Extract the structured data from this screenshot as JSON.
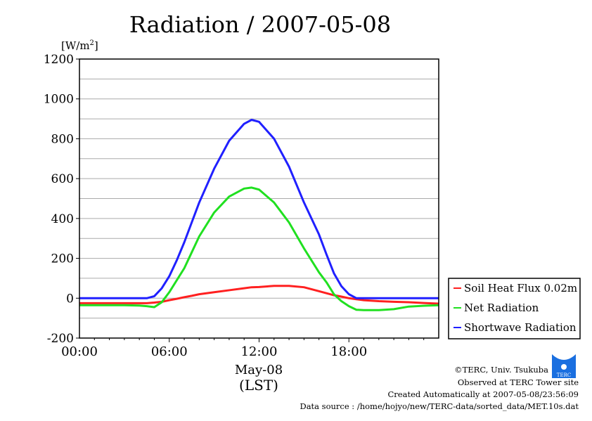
{
  "chart_data": {
    "type": "line",
    "title": "Radiation / 2007-05-08",
    "ylabel": "[W/m",
    "ylabel_sup": "2",
    "ylabel_end": "]",
    "xlabel_date": "May-08",
    "xlabel": "(LST)",
    "xlim": [
      0,
      24
    ],
    "ylim": [
      -200,
      1200
    ],
    "yticks": [
      -200,
      0,
      200,
      400,
      600,
      800,
      1000,
      1200
    ],
    "ytick_labels": [
      "-200",
      "0",
      "200",
      "400",
      "600",
      "800",
      "1000",
      "1200"
    ],
    "xticks": [
      0,
      6,
      12,
      18
    ],
    "xtick_labels": [
      "00:00",
      "06:00",
      "12:00",
      "18:00"
    ],
    "grid": true,
    "legend_position": "right",
    "x": [
      0,
      1,
      2,
      3,
      4,
      4.5,
      5,
      5.5,
      6,
      6.5,
      7,
      7.5,
      8,
      9,
      10,
      11,
      11.5,
      12,
      13,
      14,
      15,
      16,
      16.5,
      17,
      17.5,
      18,
      18.5,
      19,
      20,
      21,
      22,
      23,
      24
    ],
    "series": [
      {
        "name": "Soil Heat Flux 0.02m",
        "color": "#ff2020",
        "values": [
          -25,
          -25,
          -25,
          -25,
          -25,
          -25,
          -22,
          -18,
          -10,
          -3,
          5,
          12,
          20,
          30,
          40,
          50,
          55,
          56,
          62,
          62,
          55,
          35,
          25,
          15,
          8,
          0,
          -5,
          -10,
          -15,
          -18,
          -20,
          -24,
          -27
        ]
      },
      {
        "name": "Net Radiation",
        "color": "#20e020",
        "values": [
          -35,
          -35,
          -35,
          -35,
          -37,
          -40,
          -45,
          -20,
          30,
          90,
          150,
          230,
          310,
          430,
          510,
          550,
          555,
          545,
          480,
          380,
          250,
          130,
          80,
          20,
          -15,
          -40,
          -58,
          -60,
          -60,
          -55,
          -42,
          -38,
          -35
        ]
      },
      {
        "name": "Shortwave Radiation",
        "color": "#2020ff",
        "values": [
          0,
          0,
          0,
          0,
          0,
          0,
          10,
          50,
          110,
          190,
          280,
          380,
          480,
          650,
          790,
          875,
          895,
          885,
          800,
          660,
          480,
          320,
          220,
          125,
          60,
          20,
          0,
          0,
          0,
          0,
          0,
          0,
          0
        ]
      }
    ]
  },
  "footer": {
    "copyright": "©TERC, Univ. Tsukuba",
    "observed": "Observed at TERC Tower site",
    "created": "Created Automatically at 2007-05-08/23:56:09",
    "source": "Data source : /home/hojyo/new/TERC-data/sorted_data/MET.10s.dat",
    "logo_text": "TERC"
  }
}
